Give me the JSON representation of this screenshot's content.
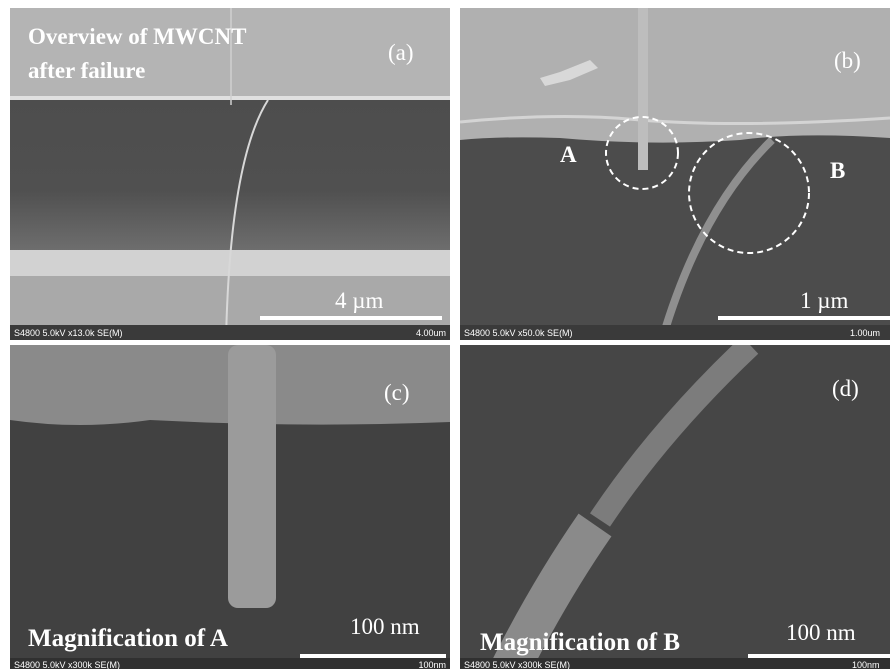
{
  "panels": [
    {
      "label": "(a)",
      "caption": [
        "Overview of MWCNT",
        "after failure"
      ],
      "scale_bar": "4 µm",
      "info": "S4800 5.0kV x13.0k SE(M)",
      "info_scale": "4.00um"
    },
    {
      "label": "(b)",
      "markers": [
        "A",
        "B"
      ],
      "scale_bar": "1 µm",
      "info": "S4800 5.0kV x50.0k SE(M)",
      "info_scale": "1.00um"
    },
    {
      "label": "(c)",
      "caption": [
        "Magnification of A"
      ],
      "scale_bar": "100 nm",
      "info": "S4800 5.0kV x300k SE(M)",
      "info_scale": "100nm"
    },
    {
      "label": "(d)",
      "caption": [
        "Magnification of B"
      ],
      "scale_bar": "100 nm",
      "info": "S4800 5.0kV x300k SE(M)",
      "info_scale": "100nm"
    }
  ]
}
